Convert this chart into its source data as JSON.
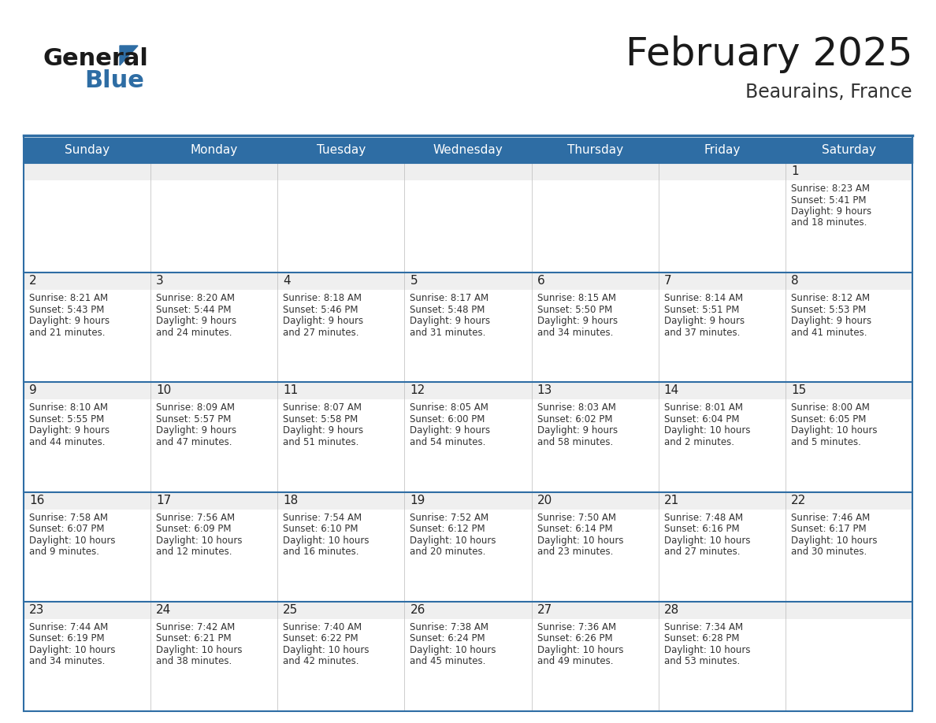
{
  "title": "February 2025",
  "subtitle": "Beaurains, France",
  "header_bg": "#2E6DA4",
  "header_text_color": "#FFFFFF",
  "cell_day_bg": "#EFEFEF",
  "cell_content_bg": "#FFFFFF",
  "border_color": "#2E6DA4",
  "day_number_color": "#222222",
  "info_text_color": "#333333",
  "days_of_week": [
    "Sunday",
    "Monday",
    "Tuesday",
    "Wednesday",
    "Thursday",
    "Friday",
    "Saturday"
  ],
  "calendar": [
    [
      null,
      null,
      null,
      null,
      null,
      null,
      {
        "day": 1,
        "sunrise": "8:23 AM",
        "sunset": "5:41 PM",
        "daylight_line1": "9 hours",
        "daylight_line2": "and 18 minutes."
      }
    ],
    [
      {
        "day": 2,
        "sunrise": "8:21 AM",
        "sunset": "5:43 PM",
        "daylight_line1": "9 hours",
        "daylight_line2": "and 21 minutes."
      },
      {
        "day": 3,
        "sunrise": "8:20 AM",
        "sunset": "5:44 PM",
        "daylight_line1": "9 hours",
        "daylight_line2": "and 24 minutes."
      },
      {
        "day": 4,
        "sunrise": "8:18 AM",
        "sunset": "5:46 PM",
        "daylight_line1": "9 hours",
        "daylight_line2": "and 27 minutes."
      },
      {
        "day": 5,
        "sunrise": "8:17 AM",
        "sunset": "5:48 PM",
        "daylight_line1": "9 hours",
        "daylight_line2": "and 31 minutes."
      },
      {
        "day": 6,
        "sunrise": "8:15 AM",
        "sunset": "5:50 PM",
        "daylight_line1": "9 hours",
        "daylight_line2": "and 34 minutes."
      },
      {
        "day": 7,
        "sunrise": "8:14 AM",
        "sunset": "5:51 PM",
        "daylight_line1": "9 hours",
        "daylight_line2": "and 37 minutes."
      },
      {
        "day": 8,
        "sunrise": "8:12 AM",
        "sunset": "5:53 PM",
        "daylight_line1": "9 hours",
        "daylight_line2": "and 41 minutes."
      }
    ],
    [
      {
        "day": 9,
        "sunrise": "8:10 AM",
        "sunset": "5:55 PM",
        "daylight_line1": "9 hours",
        "daylight_line2": "and 44 minutes."
      },
      {
        "day": 10,
        "sunrise": "8:09 AM",
        "sunset": "5:57 PM",
        "daylight_line1": "9 hours",
        "daylight_line2": "and 47 minutes."
      },
      {
        "day": 11,
        "sunrise": "8:07 AM",
        "sunset": "5:58 PM",
        "daylight_line1": "9 hours",
        "daylight_line2": "and 51 minutes."
      },
      {
        "day": 12,
        "sunrise": "8:05 AM",
        "sunset": "6:00 PM",
        "daylight_line1": "9 hours",
        "daylight_line2": "and 54 minutes."
      },
      {
        "day": 13,
        "sunrise": "8:03 AM",
        "sunset": "6:02 PM",
        "daylight_line1": "9 hours",
        "daylight_line2": "and 58 minutes."
      },
      {
        "day": 14,
        "sunrise": "8:01 AM",
        "sunset": "6:04 PM",
        "daylight_line1": "10 hours",
        "daylight_line2": "and 2 minutes."
      },
      {
        "day": 15,
        "sunrise": "8:00 AM",
        "sunset": "6:05 PM",
        "daylight_line1": "10 hours",
        "daylight_line2": "and 5 minutes."
      }
    ],
    [
      {
        "day": 16,
        "sunrise": "7:58 AM",
        "sunset": "6:07 PM",
        "daylight_line1": "10 hours",
        "daylight_line2": "and 9 minutes."
      },
      {
        "day": 17,
        "sunrise": "7:56 AM",
        "sunset": "6:09 PM",
        "daylight_line1": "10 hours",
        "daylight_line2": "and 12 minutes."
      },
      {
        "day": 18,
        "sunrise": "7:54 AM",
        "sunset": "6:10 PM",
        "daylight_line1": "10 hours",
        "daylight_line2": "and 16 minutes."
      },
      {
        "day": 19,
        "sunrise": "7:52 AM",
        "sunset": "6:12 PM",
        "daylight_line1": "10 hours",
        "daylight_line2": "and 20 minutes."
      },
      {
        "day": 20,
        "sunrise": "7:50 AM",
        "sunset": "6:14 PM",
        "daylight_line1": "10 hours",
        "daylight_line2": "and 23 minutes."
      },
      {
        "day": 21,
        "sunrise": "7:48 AM",
        "sunset": "6:16 PM",
        "daylight_line1": "10 hours",
        "daylight_line2": "and 27 minutes."
      },
      {
        "day": 22,
        "sunrise": "7:46 AM",
        "sunset": "6:17 PM",
        "daylight_line1": "10 hours",
        "daylight_line2": "and 30 minutes."
      }
    ],
    [
      {
        "day": 23,
        "sunrise": "7:44 AM",
        "sunset": "6:19 PM",
        "daylight_line1": "10 hours",
        "daylight_line2": "and 34 minutes."
      },
      {
        "day": 24,
        "sunrise": "7:42 AM",
        "sunset": "6:21 PM",
        "daylight_line1": "10 hours",
        "daylight_line2": "and 38 minutes."
      },
      {
        "day": 25,
        "sunrise": "7:40 AM",
        "sunset": "6:22 PM",
        "daylight_line1": "10 hours",
        "daylight_line2": "and 42 minutes."
      },
      {
        "day": 26,
        "sunrise": "7:38 AM",
        "sunset": "6:24 PM",
        "daylight_line1": "10 hours",
        "daylight_line2": "and 45 minutes."
      },
      {
        "day": 27,
        "sunrise": "7:36 AM",
        "sunset": "6:26 PM",
        "daylight_line1": "10 hours",
        "daylight_line2": "and 49 minutes."
      },
      {
        "day": 28,
        "sunrise": "7:34 AM",
        "sunset": "6:28 PM",
        "daylight_line1": "10 hours",
        "daylight_line2": "and 53 minutes."
      },
      null
    ]
  ],
  "logo_general_color": "#1a1a1a",
  "logo_blue_color": "#2E6DA4",
  "title_color": "#1a1a1a",
  "subtitle_color": "#333333",
  "title_fontsize": 36,
  "subtitle_fontsize": 17,
  "header_fontsize": 11,
  "day_num_fontsize": 11,
  "cell_text_fontsize": 8.5
}
